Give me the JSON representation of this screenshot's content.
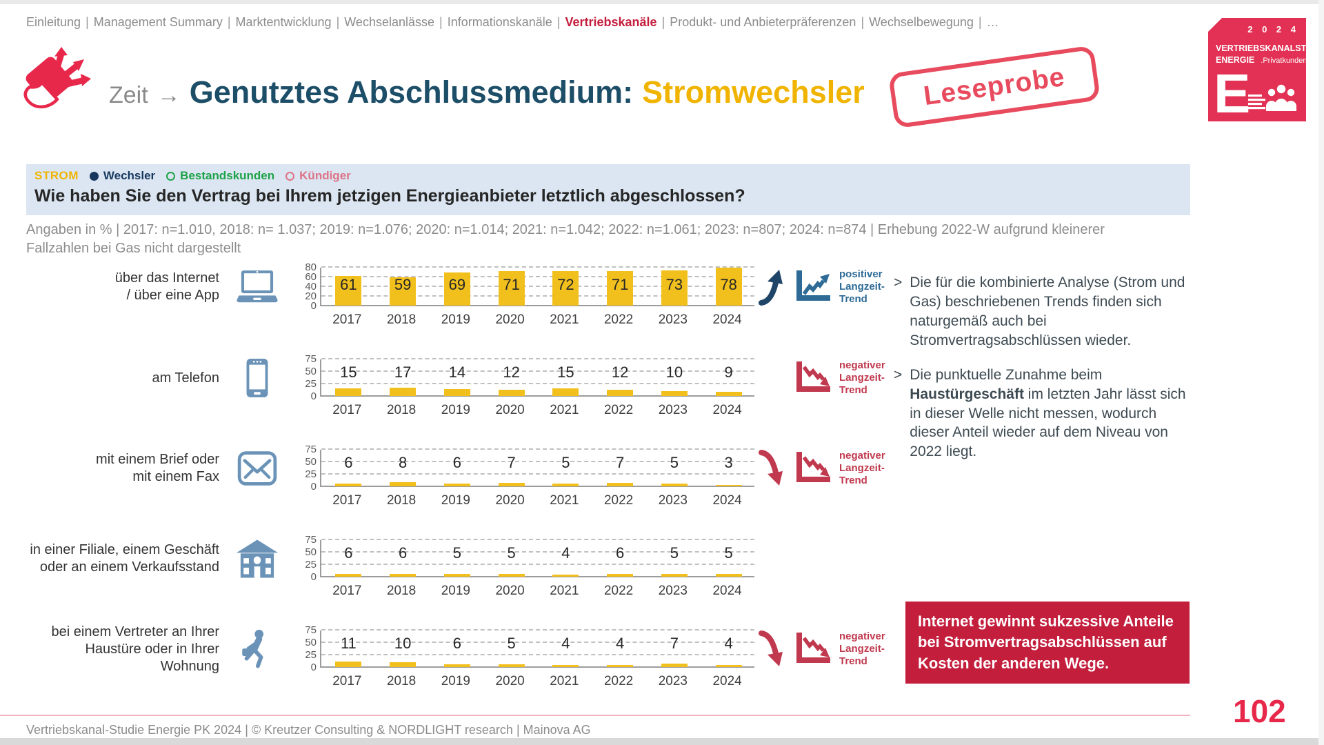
{
  "colors": {
    "accent_red": "#e8284b",
    "logo_red": "#e23154",
    "stamp_red": "#e84b5e",
    "callout_red": "#c41e3d",
    "bar_yellow": "#f2c01d",
    "title_blue": "#1d4e68",
    "highlight_yellow": "#f0b400",
    "icon_blue": "#6b93b7",
    "trend_positive": "#2d6b96",
    "trend_negative": "#c0394e",
    "end_arrow_up": "#1f4668",
    "end_arrow_down": "#c0394e",
    "legend_navy": "#17375e",
    "legend_green": "#1fa24a",
    "legend_pink": "#dd7386",
    "question_bg": "#dbe6f2"
  },
  "breadcrumb": {
    "items": [
      "Einleitung",
      "Management Summary",
      "Marktentwicklung",
      "Wechselanlässe",
      "Informationskanäle",
      "Vertriebskanäle",
      "Produkt- und Anbieterpräferenzen",
      "Wechselbewegung",
      "…"
    ],
    "active": "Vertriebskanäle",
    "separator": "|"
  },
  "header": {
    "prefix": "Zeit",
    "arrow_glyph": "→",
    "title": "Genutztes Abschlussmedium:",
    "title_highlight": "Stromwechsler",
    "stamp": "Leseprobe",
    "icon": "hand-card-arrows-icon"
  },
  "logo": {
    "year": "2 0 2 4",
    "line1": "VERTRIEBSKANALSTUDIE",
    "line2": "ENERGIE",
    "line2_suffix": ".Privatkunden",
    "letter": "E"
  },
  "question_bar": {
    "segment": "STROM",
    "legend": [
      {
        "label": "Wechsler",
        "marker": "filled",
        "color": "#17375e"
      },
      {
        "label": "Bestandskunden",
        "marker": "open",
        "color": "#1fa24a"
      },
      {
        "label": "Kündiger",
        "marker": "open",
        "color": "#dd7386"
      }
    ],
    "question": "Wie haben Sie den Vertrag bei Ihrem jetzigen Energieanbieter letztlich abgeschlossen?"
  },
  "subtitle": "Angaben in % | 2017: n=1.010, 2018: n= 1.037; 2019: n=1.076; 2020: n=1.014; 2021: n=1.042; 2022: n=1.061; 2023: n=807; 2024: n=874 | Erhebung 2022-W aufgrund kleinerer Fallzahlen bei Gas nicht dargestellt",
  "chart_data": {
    "type": "bar",
    "unit": "%",
    "grid": true,
    "bar_color": "#f2c01d",
    "categories": [
      "2017",
      "2018",
      "2019",
      "2020",
      "2021",
      "2022",
      "2023",
      "2024"
    ],
    "series": [
      {
        "name": "über das Internet / über eine App",
        "label_lines": [
          "über das Internet",
          "/ über eine App"
        ],
        "icon": "laptop-icon",
        "values": [
          61,
          59,
          69,
          71,
          72,
          71,
          73,
          78
        ],
        "ylim": [
          0,
          80
        ],
        "yticks": [
          0,
          20,
          40,
          60,
          80
        ],
        "end_arrow": "up",
        "trend_direction": "up",
        "trend_lines": [
          "positiver",
          "Langzeit-",
          "Trend"
        ]
      },
      {
        "name": "am Telefon",
        "label_lines": [
          "am Telefon"
        ],
        "icon": "phone-icon",
        "values": [
          15,
          17,
          14,
          12,
          15,
          12,
          10,
          9
        ],
        "ylim": [
          0,
          75
        ],
        "yticks": [
          0,
          25,
          50,
          75
        ],
        "end_arrow": null,
        "trend_direction": "down",
        "trend_lines": [
          "negativer",
          "Langzeit-",
          "Trend"
        ]
      },
      {
        "name": "mit einem Brief oder mit einem Fax",
        "label_lines": [
          "mit einem Brief oder",
          "mit einem Fax"
        ],
        "icon": "envelope-icon",
        "values": [
          6,
          8,
          6,
          7,
          5,
          7,
          5,
          3
        ],
        "ylim": [
          0,
          75
        ],
        "yticks": [
          0,
          25,
          50,
          75
        ],
        "end_arrow": "down",
        "trend_direction": "down",
        "trend_lines": [
          "negativer",
          "Langzeit-",
          "Trend"
        ]
      },
      {
        "name": "in einer Filiale, einem Geschäft oder an einem Verkaufsstand",
        "label_lines": [
          "in einer Filiale, einem Geschäft",
          "oder an einem Verkaufsstand"
        ],
        "icon": "building-icon",
        "values": [
          6,
          6,
          5,
          5,
          4,
          6,
          5,
          5
        ],
        "ylim": [
          0,
          75
        ],
        "yticks": [
          0,
          25,
          50,
          75
        ],
        "end_arrow": null,
        "trend_direction": null,
        "trend_lines": null
      },
      {
        "name": "bei einem Vertreter an Ihrer Haustüre oder in Ihrer Wohnung",
        "label_lines": [
          "bei einem Vertreter an Ihrer",
          "Haustüre oder in Ihrer",
          "Wohnung"
        ],
        "icon": "salesman-icon",
        "values": [
          11,
          10,
          6,
          5,
          4,
          4,
          7,
          4
        ],
        "ylim": [
          0,
          75
        ],
        "yticks": [
          0,
          25,
          50,
          75
        ],
        "end_arrow": "down",
        "trend_direction": "down",
        "trend_lines": [
          "negativer",
          "Langzeit-",
          "Trend"
        ]
      }
    ]
  },
  "insights": [
    {
      "marker": ">",
      "segments": [
        {
          "text": "Die für die kombinierte Analyse (Strom und Gas) beschriebenen Trends finden sich naturgemäß auch bei Stromvertragsabschlüssen wieder.",
          "bold": false
        }
      ]
    },
    {
      "marker": ">",
      "segments": [
        {
          "text": "Die punktuelle Zunahme beim ",
          "bold": false
        },
        {
          "text": "Haustürgeschäft",
          "bold": true
        },
        {
          "text": " im letzten Jahr lässt sich in dieser Welle nicht messen, wodurch dieser Anteil wieder auf dem Niveau von 2022 liegt.",
          "bold": false
        }
      ]
    }
  ],
  "callout": {
    "text": "Internet gewinnt sukzessive Anteile bei Stromvertragsabschlüssen auf Kosten der anderen Wege."
  },
  "footer": {
    "text": "Vertriebskanal-Studie Energie PK 2024 | © Kreutzer Consulting & NORDLIGHT research | Mainova AG",
    "page": "102"
  }
}
